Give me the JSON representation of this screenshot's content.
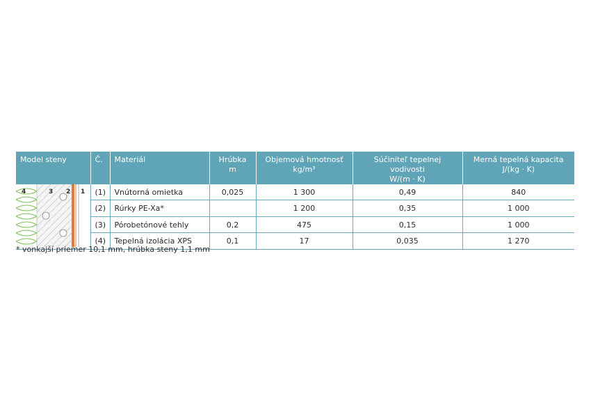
{
  "headers": {
    "model": "Model steny",
    "num": "Č.",
    "material": "Materiál",
    "thickness": "Hrúbka",
    "thickness_unit": "m",
    "density": "Objemová hmotnosť",
    "density_unit": "kg/m³",
    "conductivity": "Súčiniteľ tepelnej vodivosti",
    "conductivity_unit": "W/(m · K)",
    "capacity": "Merná tepelná kapacita",
    "capacity_unit": "J/(kg · K)"
  },
  "wall_labels": [
    "4",
    "3",
    "2",
    "1"
  ],
  "rows": [
    {
      "num": "(1)",
      "material": "Vnútorná omietka",
      "thickness": "0,025",
      "density": "1 300",
      "conductivity": "0,49",
      "capacity": "840"
    },
    {
      "num": "(2)",
      "material": "Rúrky PE-Xa*",
      "thickness": "",
      "density": "1 200",
      "conductivity": "0,35",
      "capacity": "1 000"
    },
    {
      "num": "(3)",
      "material": "Pórobetónové tehly",
      "thickness": "0,2",
      "density": "475",
      "conductivity": "0,15",
      "capacity": "1 000"
    },
    {
      "num": "(4)",
      "material": "Tepelná izolácia XPS",
      "thickness": "0,1",
      "density": "17",
      "conductivity": "0,035",
      "capacity": "1 270"
    }
  ],
  "footnote": "* vonkajší priemer 10,1 mm, hrúbka steny 1,1 mm",
  "colors": {
    "header": "#5fa4b7",
    "insulation": "#7fbf5a",
    "pipe": "#e07a3a"
  }
}
